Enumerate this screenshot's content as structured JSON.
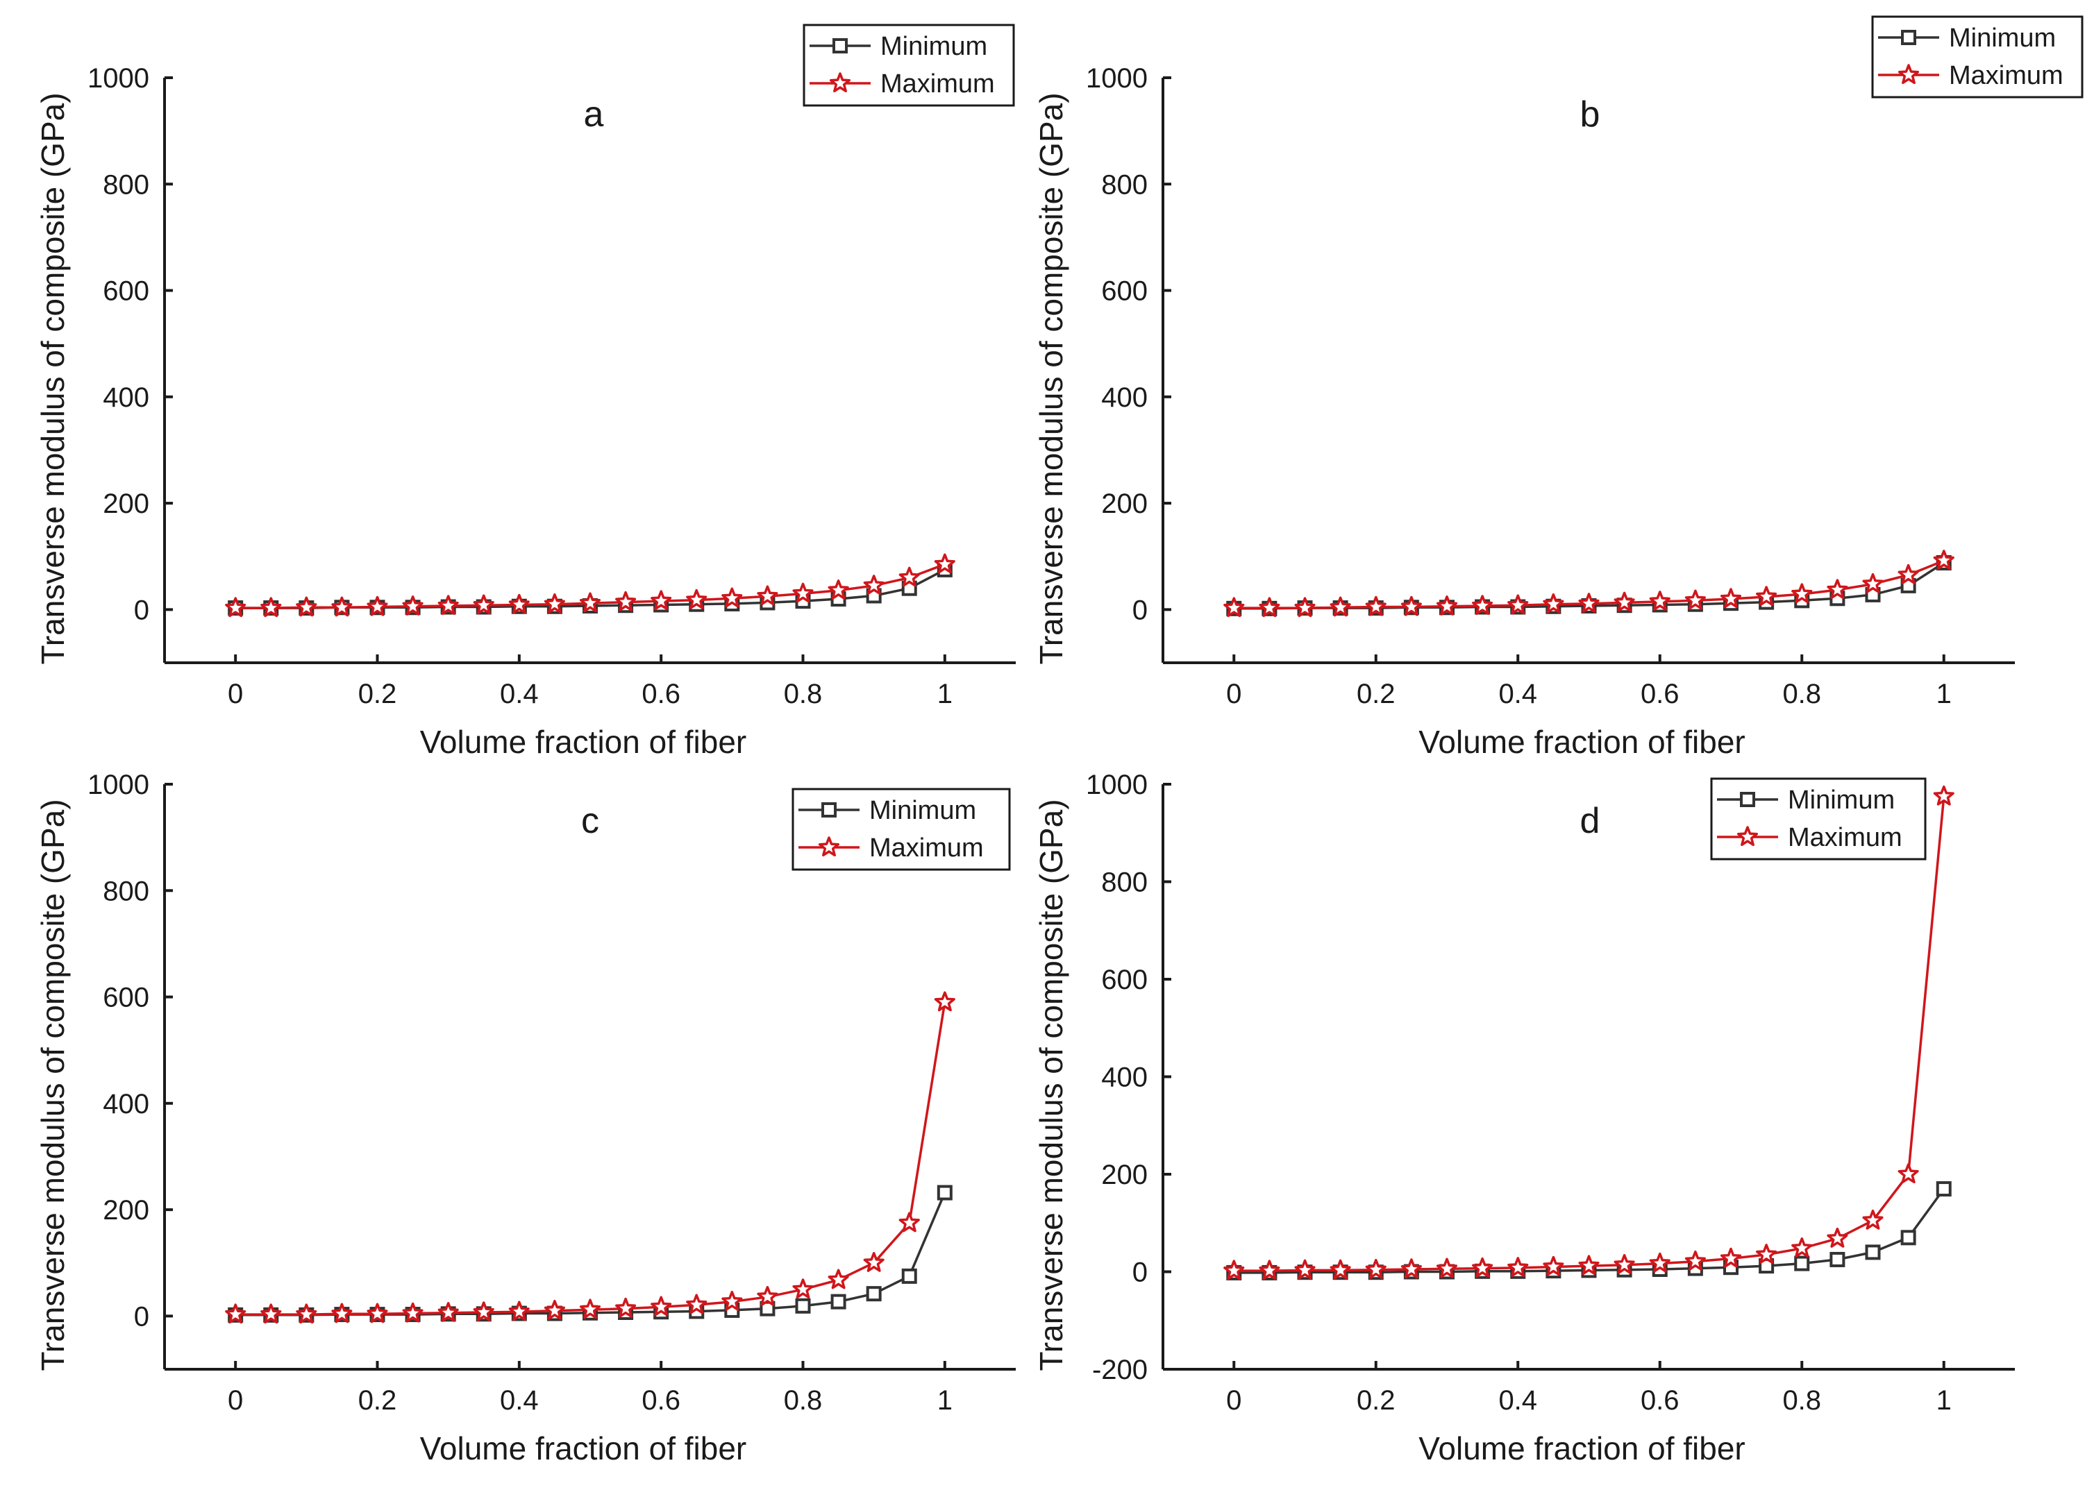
{
  "figure": {
    "xlabel": "Volume fraction of fiber",
    "ylabel": "Transverse modulus of composite (GPa)",
    "series_colors": {
      "Minimum": "#333333",
      "Maximum": "#d0161b"
    }
  },
  "chart_data": [
    {
      "type": "line",
      "title": "a",
      "xlabel": "Volume fraction of fiber",
      "ylabel": "Transverse modulus of composite (GPa)",
      "xlim": [
        -0.1,
        1.1
      ],
      "ylim": [
        -100,
        1000
      ],
      "xticks": [
        0,
        0.2,
        0.4,
        0.6,
        0.8,
        1
      ],
      "xtick_labels": [
        "0",
        "0.2",
        "0.4",
        "0.6",
        "0.8",
        "1"
      ],
      "yticks": [
        0,
        200,
        400,
        600,
        800,
        1000
      ],
      "ytick_labels": [
        "0",
        "200",
        "400",
        "600",
        "800",
        "1000"
      ],
      "legend_position": "top-right",
      "x": [
        0,
        0.05,
        0.1,
        0.15,
        0.2,
        0.25,
        0.3,
        0.35,
        0.4,
        0.45,
        0.5,
        0.55,
        0.6,
        0.65,
        0.7,
        0.75,
        0.8,
        0.85,
        0.9,
        0.95,
        1
      ],
      "series": [
        {
          "name": "Minimum",
          "marker": "square",
          "values": [
            3,
            3,
            3,
            4,
            4,
            4,
            5,
            5,
            6,
            6,
            7,
            8,
            9,
            10,
            11,
            13,
            16,
            20,
            26,
            40,
            75
          ]
        },
        {
          "name": "Maximum",
          "marker": "star",
          "values": [
            3,
            3,
            4,
            4,
            5,
            6,
            7,
            8,
            9,
            10,
            12,
            14,
            16,
            18,
            21,
            25,
            30,
            36,
            45,
            60,
            85
          ]
        }
      ]
    },
    {
      "type": "line",
      "title": "b",
      "xlabel": "Volume fraction of fiber",
      "ylabel": "Transverse modulus of composite (GPa)",
      "xlim": [
        -0.1,
        1.1
      ],
      "ylim": [
        -100,
        1000
      ],
      "xticks": [
        0,
        0.2,
        0.4,
        0.6,
        0.8,
        1
      ],
      "xtick_labels": [
        "0",
        "0.2",
        "0.4",
        "0.6",
        "0.8",
        "1"
      ],
      "yticks": [
        0,
        200,
        400,
        600,
        800,
        1000
      ],
      "ytick_labels": [
        "0",
        "200",
        "400",
        "600",
        "800",
        "1000"
      ],
      "legend_position": "top-right",
      "x": [
        0,
        0.05,
        0.1,
        0.15,
        0.2,
        0.25,
        0.3,
        0.35,
        0.4,
        0.45,
        0.5,
        0.55,
        0.6,
        0.65,
        0.7,
        0.75,
        0.8,
        0.85,
        0.9,
        0.95,
        1
      ],
      "series": [
        {
          "name": "Minimum",
          "marker": "square",
          "values": [
            2,
            2,
            3,
            3,
            3,
            4,
            4,
            5,
            5,
            6,
            7,
            8,
            9,
            10,
            12,
            14,
            17,
            21,
            28,
            45,
            88
          ]
        },
        {
          "name": "Maximum",
          "marker": "star",
          "values": [
            3,
            3,
            3,
            4,
            5,
            5,
            6,
            7,
            8,
            10,
            11,
            13,
            15,
            17,
            20,
            24,
            29,
            37,
            48,
            65,
            92
          ]
        }
      ]
    },
    {
      "type": "line",
      "title": "c",
      "xlabel": "Volume fraction of fiber",
      "ylabel": "Transverse modulus of composite (GPa)",
      "xlim": [
        -0.1,
        1.1
      ],
      "ylim": [
        -100,
        1000
      ],
      "xticks": [
        0,
        0.2,
        0.4,
        0.6,
        0.8,
        1
      ],
      "xtick_labels": [
        "0",
        "0.2",
        "0.4",
        "0.6",
        "0.8",
        "1"
      ],
      "yticks": [
        0,
        200,
        400,
        600,
        800,
        1000
      ],
      "ytick_labels": [
        "0",
        "200",
        "400",
        "600",
        "800",
        "1000"
      ],
      "legend_position": "top-right",
      "x": [
        0,
        0.05,
        0.1,
        0.15,
        0.2,
        0.25,
        0.3,
        0.35,
        0.4,
        0.45,
        0.5,
        0.55,
        0.6,
        0.65,
        0.7,
        0.75,
        0.8,
        0.85,
        0.9,
        0.95,
        1
      ],
      "series": [
        {
          "name": "Minimum",
          "marker": "square",
          "values": [
            2,
            2,
            2,
            3,
            3,
            3,
            4,
            4,
            5,
            5,
            6,
            7,
            8,
            9,
            11,
            14,
            19,
            27,
            42,
            75,
            232
          ]
        },
        {
          "name": "Maximum",
          "marker": "star",
          "values": [
            3,
            3,
            3,
            4,
            4,
            5,
            6,
            7,
            8,
            10,
            12,
            14,
            17,
            21,
            27,
            36,
            50,
            68,
            100,
            175,
            590
          ]
        }
      ]
    },
    {
      "type": "line",
      "title": "d",
      "xlabel": "Volume fraction of fiber",
      "ylabel": "Transverse modulus of composite (GPa)",
      "xlim": [
        -0.1,
        1.1
      ],
      "ylim": [
        -200,
        1000
      ],
      "xticks": [
        0,
        0.2,
        0.4,
        0.6,
        0.8,
        1
      ],
      "xtick_labels": [
        "0",
        "0.2",
        "0.4",
        "0.6",
        "0.8",
        "1"
      ],
      "yticks": [
        -200,
        0,
        200,
        400,
        600,
        800,
        1000
      ],
      "ytick_labels": [
        "-200",
        "0",
        "200",
        "400",
        "600",
        "800",
        "1000"
      ],
      "legend_position": "top-right",
      "x": [
        0,
        0.05,
        0.1,
        0.15,
        0.2,
        0.25,
        0.3,
        0.35,
        0.4,
        0.45,
        0.5,
        0.55,
        0.6,
        0.65,
        0.7,
        0.75,
        0.8,
        0.85,
        0.9,
        0.95,
        1
      ],
      "series": [
        {
          "name": "Minimum",
          "marker": "square",
          "values": [
            -2,
            -2,
            -1,
            -1,
            -1,
            0,
            0,
            1,
            1,
            2,
            3,
            4,
            5,
            7,
            9,
            12,
            17,
            25,
            40,
            70,
            170
          ]
        },
        {
          "name": "Maximum",
          "marker": "star",
          "values": [
            2,
            2,
            3,
            3,
            4,
            5,
            6,
            7,
            8,
            10,
            12,
            14,
            17,
            21,
            27,
            35,
            48,
            68,
            105,
            200,
            975
          ]
        }
      ]
    }
  ]
}
